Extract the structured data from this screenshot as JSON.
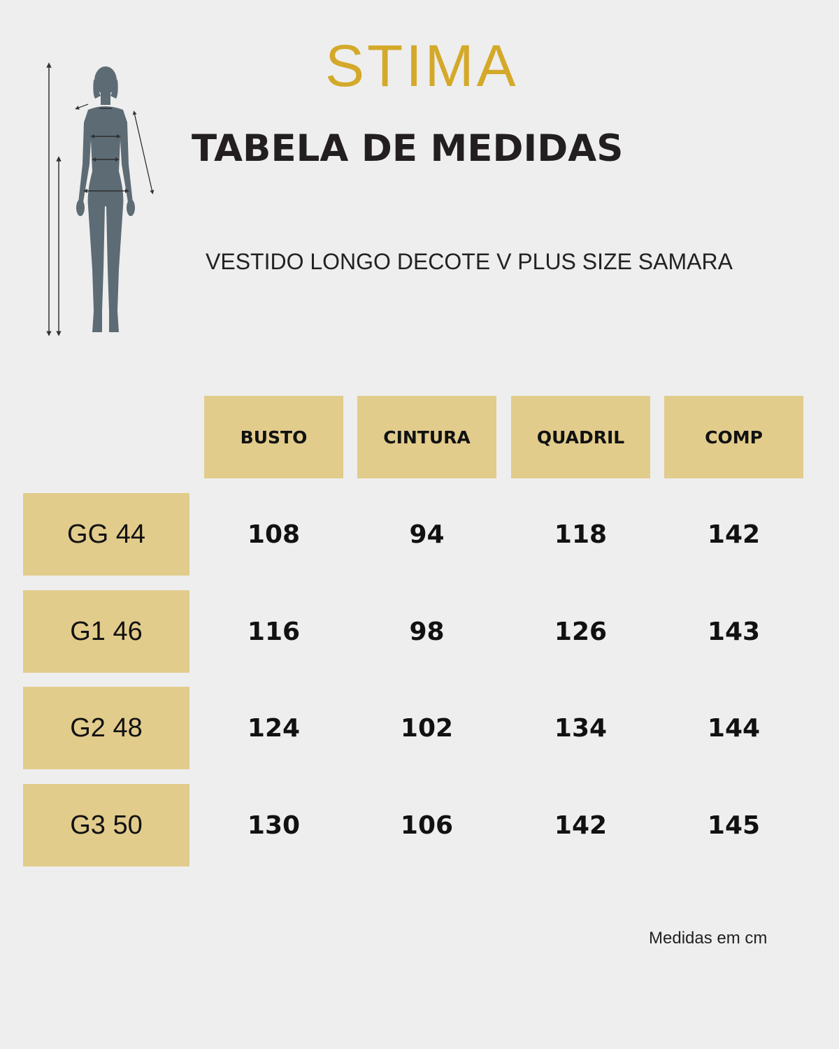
{
  "brand": "STIMA",
  "title": "TABELA DE MEDIDAS",
  "product": "VESTIDO LONGO DECOTE V PLUS SIZE SAMARA",
  "illustration": {
    "icon": "body-measurement-figure-icon",
    "color": "#5d6b74"
  },
  "colors": {
    "brand": "#d4a92a",
    "cell_background": "#e2cc8c",
    "page_background": "#eeeeee"
  },
  "table": {
    "headers": [
      "BUSTO",
      "CINTURA",
      "QUADRIL",
      "COMP"
    ],
    "rows": [
      {
        "size": "GG 44",
        "values": [
          "108",
          "94",
          "118",
          "142"
        ]
      },
      {
        "size": "G1 46",
        "values": [
          "116",
          "98",
          "126",
          "143"
        ]
      },
      {
        "size": "G2 48",
        "values": [
          "124",
          "102",
          "134",
          "144"
        ]
      },
      {
        "size": "G3 50",
        "values": [
          "130",
          "106",
          "142",
          "145"
        ]
      }
    ]
  },
  "note": "Medidas em cm"
}
